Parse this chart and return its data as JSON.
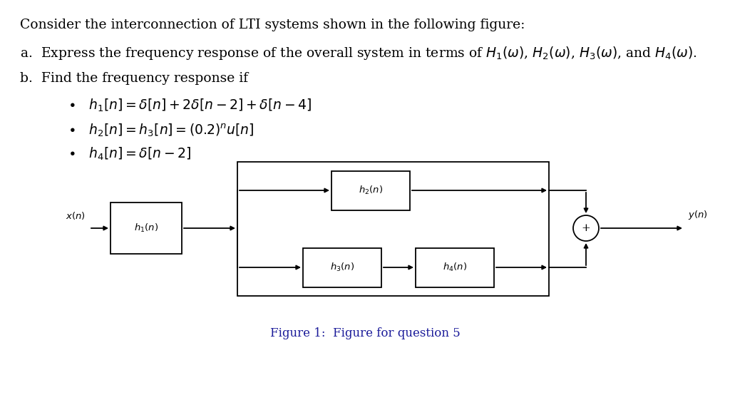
{
  "background_color": "#ffffff",
  "font_color": "#000000",
  "caption_color": "#1a1a99",
  "title_text": "Consider the interconnection of LTI systems shown in the following figure:",
  "part_a_prefix": "a.  Express the frequency response of the overall system in terms of ",
  "part_a_math": "$H_1(\\omega)$, $H_2(\\omega)$, $H_3(\\omega)$, and $H_4(\\omega)$.",
  "part_b": "b.  Find the frequency response if",
  "bullet1": "$h_1[n] = \\delta[n] + 2\\delta[n-2] + \\delta[n-4]$",
  "bullet2": "$h_2[n] = h_3[n] = (0.2)^n u[n]$",
  "bullet3": "$h_4[n] = \\delta[n-2]$",
  "figure_caption": "Figure 1:  Figure for question 5",
  "font_size_main": 13.5,
  "font_size_diagram": 9.5,
  "font_size_caption": 12
}
